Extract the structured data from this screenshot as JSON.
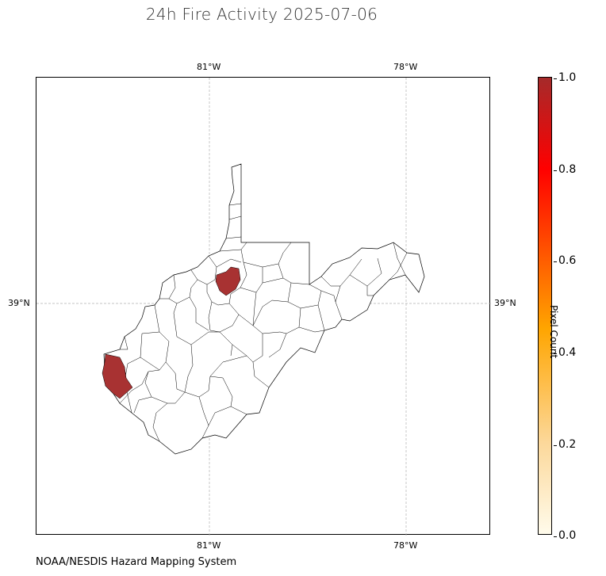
{
  "title": "24h Fire Activity 2025-07-06",
  "credit": "NOAA/NESDIS Hazard Mapping System",
  "map": {
    "region": "West Virginia counties",
    "gridlines": true,
    "lon_labels": [
      "81°W",
      "78°W"
    ],
    "lat_labels": [
      "39°N"
    ],
    "highlighted_county_color": "#a83232",
    "county_edge_color": "#000000",
    "highlighted_counties": [
      "western county on the Ohio River",
      "north-central county"
    ]
  },
  "colorbar": {
    "label": "Pixel Count",
    "ticks": [
      "0.0",
      "0.2",
      "0.4",
      "0.6",
      "0.8",
      "1.0"
    ],
    "colors": [
      "#fffbeb",
      "#fcd89a",
      "#ffa500",
      "#ff4500",
      "#ff0000",
      "#a52a2a"
    ]
  }
}
